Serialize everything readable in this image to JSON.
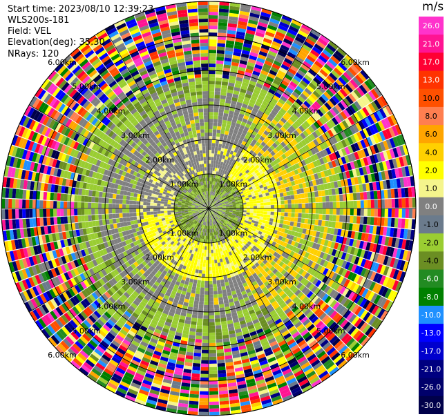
{
  "info": {
    "start_time": "Start time: 2023/08/10 12:39:23",
    "station": "WLS200s-181",
    "field": "Field: VEL",
    "elevation": "Elevation(deg): 35.30",
    "nrays": "NRays: 120"
  },
  "chart_data": {
    "type": "polar-ppi",
    "field": "VEL",
    "units": "m/s",
    "n_rays": 120,
    "max_range_km": 6.0,
    "range_rings_km": [
      1.0,
      2.0,
      3.0,
      4.0,
      5.0,
      6.0
    ],
    "range_ring_labels": [
      "1.00km",
      "2.00km",
      "3.00km",
      "4.00km",
      "5.00km",
      "6.00km"
    ],
    "azimuth_lines_deg": [
      0,
      30,
      60,
      90,
      120,
      150,
      180,
      210,
      240,
      270,
      300,
      330
    ],
    "colorbar": {
      "ticks": [
        26.0,
        21.0,
        17.0,
        13.0,
        10.0,
        8.0,
        6.0,
        4.0,
        2.0,
        1.0,
        0.0,
        -1.0,
        -2.0,
        -4.0,
        -6.0,
        -8.0,
        -10.0,
        -13.0,
        -17.0,
        -21.0,
        -26.0,
        -30.0
      ],
      "tick_labels": [
        "26.0",
        "21.0",
        "17.0",
        "13.0",
        "10.0",
        "8.0",
        "6.0",
        "4.0",
        "2.0",
        "1.0",
        "0.0",
        "-1.0",
        "-2.0",
        "-4.0",
        "-6.0",
        "-8.0",
        "-10.0",
        "-13.0",
        "-17.0",
        "-21.0",
        "-26.0",
        "-30.0"
      ],
      "colors": [
        "#ff33cc",
        "#ff1493",
        "#ff0033",
        "#ff3300",
        "#ff5000",
        "#ff7f50",
        "#ffa500",
        "#ffd000",
        "#ffff00",
        "#f5f58c",
        "#808080",
        "#6b7b8c",
        "#9acd32",
        "#6b8e23",
        "#228b22",
        "#008000",
        "#1e90ff",
        "#0000ff",
        "#0000cd",
        "#000080",
        "#00006b",
        "#00004a"
      ]
    }
  }
}
